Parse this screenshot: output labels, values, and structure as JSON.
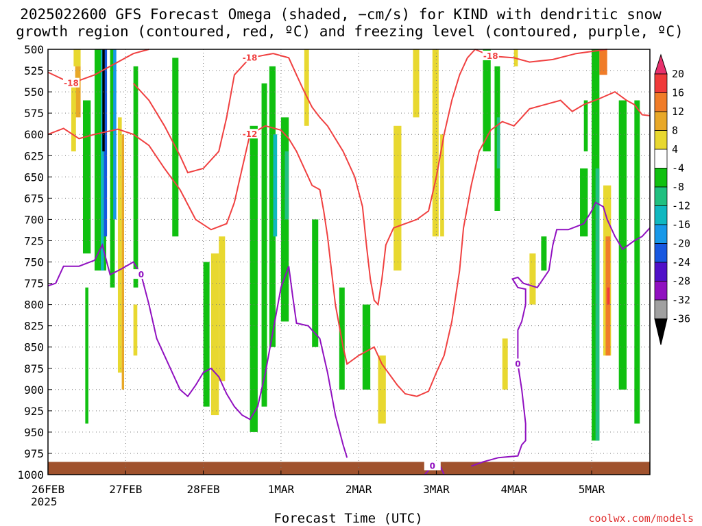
{
  "chart_data": {
    "type": "heatmap",
    "title_line1": "2025022600 GFS Forecast Omega (shaded, −cm/s) for KIND with dendritic snow",
    "title_line2": "growth region (contoured, red, ºC) and freezing level (contoured, purple, ºC)",
    "xlabel": "Forecast Time (UTC)",
    "x_ticks": [
      "26FEB",
      "27FEB",
      "28FEB",
      "1MAR",
      "2MAR",
      "3MAR",
      "4MAR",
      "5MAR"
    ],
    "x_year": "2025",
    "xlim": [
      0,
      7.75
    ],
    "y_ticks": [
      500,
      525,
      550,
      575,
      600,
      625,
      650,
      675,
      700,
      725,
      750,
      775,
      800,
      825,
      850,
      875,
      900,
      925,
      950,
      975,
      1000
    ],
    "ylim": [
      1000,
      500
    ],
    "grid": true,
    "colorbar": {
      "labels": [
        "20",
        "16",
        "12",
        "8",
        "4",
        "-4",
        "-8",
        "-12",
        "-16",
        "-20",
        "-24",
        "-28",
        "-32",
        "-36"
      ],
      "colors": [
        "#e8306c",
        "#f03a3a",
        "#f07c28",
        "#e8a828",
        "#e8d830",
        "#ffffff",
        "#10c010",
        "#20c080",
        "#10b8c0",
        "#1898e8",
        "#1858e0",
        "#5010c8",
        "#9010c0",
        "#a0a0a0",
        "#000000"
      ]
    },
    "contours": [
      {
        "color": "#f04040",
        "label": "-18",
        "points": [
          [
            0.0,
            527
          ],
          [
            0.3,
            540
          ],
          [
            0.6,
            530
          ],
          [
            0.8,
            520
          ],
          [
            1.1,
            505
          ],
          [
            1.3,
            500
          ]
        ]
      },
      {
        "color": "#f04040",
        "label": "-18",
        "points": [
          [
            1.1,
            540
          ],
          [
            1.3,
            560
          ],
          [
            1.5,
            590
          ],
          [
            1.7,
            625
          ],
          [
            1.8,
            645
          ],
          [
            2.0,
            640
          ],
          [
            2.2,
            620
          ],
          [
            2.3,
            580
          ],
          [
            2.4,
            530
          ],
          [
            2.6,
            510
          ],
          [
            2.9,
            505
          ],
          [
            3.1,
            510
          ],
          [
            3.2,
            530
          ],
          [
            3.3,
            550
          ],
          [
            3.4,
            568
          ],
          [
            3.5,
            580
          ],
          [
            3.6,
            590
          ],
          [
            3.8,
            620
          ],
          [
            3.95,
            650
          ],
          [
            4.05,
            685
          ],
          [
            4.1,
            730
          ],
          [
            4.15,
            770
          ],
          [
            4.2,
            795
          ],
          [
            4.25,
            800
          ],
          [
            4.3,
            770
          ],
          [
            4.35,
            730
          ],
          [
            4.45,
            710
          ],
          [
            4.6,
            705
          ],
          [
            4.75,
            700
          ],
          [
            4.9,
            690
          ],
          [
            5.0,
            650
          ],
          [
            5.1,
            600
          ],
          [
            5.2,
            560
          ],
          [
            5.3,
            530
          ],
          [
            5.4,
            510
          ],
          [
            5.5,
            500
          ]
        ]
      },
      {
        "color": "#f04040",
        "label": "-18",
        "points": [
          [
            5.5,
            500
          ],
          [
            5.7,
            508
          ],
          [
            6.0,
            510
          ],
          [
            6.2,
            515
          ],
          [
            6.5,
            512
          ],
          [
            6.8,
            505
          ],
          [
            7.2,
            500
          ]
        ]
      },
      {
        "color": "#f04040",
        "label": "-12",
        "points": [
          [
            0.0,
            600
          ],
          [
            0.2,
            593
          ],
          [
            0.4,
            605
          ],
          [
            0.6,
            600
          ],
          [
            0.9,
            594
          ],
          [
            1.1,
            600
          ],
          [
            1.3,
            613
          ],
          [
            1.5,
            640
          ],
          [
            1.7,
            665
          ],
          [
            1.9,
            700
          ],
          [
            2.1,
            712
          ],
          [
            2.3,
            705
          ],
          [
            2.4,
            680
          ],
          [
            2.5,
            640
          ],
          [
            2.6,
            600
          ],
          [
            2.8,
            590
          ],
          [
            3.0,
            595
          ],
          [
            3.1,
            605
          ],
          [
            3.2,
            620
          ],
          [
            3.3,
            640
          ],
          [
            3.4,
            660
          ],
          [
            3.5,
            665
          ],
          [
            3.55,
            690
          ],
          [
            3.6,
            720
          ],
          [
            3.65,
            760
          ],
          [
            3.7,
            800
          ],
          [
            3.8,
            850
          ],
          [
            3.85,
            870
          ],
          [
            4.0,
            860
          ],
          [
            4.2,
            850
          ],
          [
            4.3,
            870
          ],
          [
            4.5,
            895
          ],
          [
            4.6,
            905
          ],
          [
            4.75,
            908
          ],
          [
            4.9,
            902
          ],
          [
            5.0,
            880
          ],
          [
            5.1,
            860
          ],
          [
            5.2,
            820
          ],
          [
            5.3,
            760
          ],
          [
            5.35,
            710
          ],
          [
            5.45,
            660
          ],
          [
            5.55,
            620
          ],
          [
            5.7,
            595
          ],
          [
            5.85,
            585
          ],
          [
            6.0,
            590
          ],
          [
            6.1,
            580
          ],
          [
            6.2,
            570
          ],
          [
            6.4,
            565
          ],
          [
            6.6,
            560
          ],
          [
            6.75,
            573
          ],
          [
            6.9,
            565
          ],
          [
            7.1,
            558
          ],
          [
            7.3,
            550
          ],
          [
            7.45,
            560
          ],
          [
            7.55,
            565
          ],
          [
            7.65,
            577
          ],
          [
            7.75,
            578
          ]
        ]
      },
      {
        "color": "#9010c0",
        "label": "0",
        "points": [
          [
            0.0,
            778
          ],
          [
            0.1,
            775
          ],
          [
            0.2,
            755
          ],
          [
            0.4,
            755
          ],
          [
            0.6,
            748
          ],
          [
            0.7,
            730
          ],
          [
            0.8,
            765
          ],
          [
            0.95,
            758
          ],
          [
            1.1,
            750
          ],
          [
            1.2,
            765
          ],
          [
            1.3,
            800
          ],
          [
            1.4,
            840
          ],
          [
            1.5,
            860
          ],
          [
            1.6,
            880
          ],
          [
            1.7,
            900
          ],
          [
            1.8,
            908
          ],
          [
            1.9,
            895
          ],
          [
            2.0,
            880
          ],
          [
            2.1,
            875
          ],
          [
            2.2,
            885
          ],
          [
            2.3,
            905
          ],
          [
            2.4,
            920
          ],
          [
            2.5,
            930
          ],
          [
            2.6,
            935
          ],
          [
            2.7,
            920
          ],
          [
            2.8,
            880
          ],
          [
            2.9,
            830
          ],
          [
            3.0,
            780
          ],
          [
            3.1,
            755
          ],
          [
            3.15,
            790
          ],
          [
            3.2,
            822
          ],
          [
            3.35,
            825
          ],
          [
            3.5,
            840
          ],
          [
            3.6,
            880
          ],
          [
            3.7,
            930
          ],
          [
            3.8,
            965
          ],
          [
            3.85,
            980
          ]
        ]
      },
      {
        "color": "#9010c0",
        "label": "0",
        "points": [
          [
            4.85,
            1000
          ],
          [
            4.95,
            990
          ],
          [
            5.05,
            990
          ],
          [
            5.1,
            1000
          ]
        ]
      },
      {
        "color": "#9010c0",
        "label": "0",
        "points": [
          [
            5.45,
            990
          ],
          [
            5.6,
            985
          ],
          [
            5.8,
            980
          ],
          [
            6.05,
            978
          ],
          [
            6.1,
            965
          ],
          [
            6.15,
            960
          ],
          [
            6.15,
            940
          ],
          [
            6.1,
            900
          ],
          [
            6.05,
            870
          ],
          [
            6.05,
            830
          ],
          [
            6.1,
            820
          ],
          [
            6.15,
            800
          ],
          [
            6.15,
            782
          ],
          [
            6.05,
            780
          ],
          [
            5.98,
            770
          ],
          [
            6.05,
            768
          ],
          [
            6.12,
            775
          ],
          [
            6.3,
            780
          ],
          [
            6.45,
            760
          ],
          [
            6.5,
            730
          ],
          [
            6.55,
            712
          ],
          [
            6.7,
            712
          ],
          [
            6.9,
            705
          ],
          [
            7.0,
            690
          ],
          [
            7.05,
            680
          ],
          [
            7.15,
            685
          ],
          [
            7.2,
            700
          ],
          [
            7.3,
            720
          ],
          [
            7.4,
            735
          ],
          [
            7.55,
            725
          ],
          [
            7.65,
            720
          ],
          [
            7.75,
            710
          ]
        ]
      }
    ]
  },
  "credit": "coolwx.com/models"
}
